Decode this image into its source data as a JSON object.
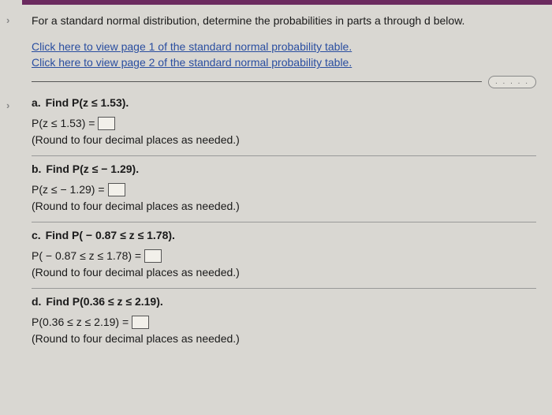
{
  "colors": {
    "accent_bar": "#6b2a5f",
    "background": "#d9d7d2",
    "link": "#2a4ea0",
    "text": "#1a1a1a",
    "border": "#555555"
  },
  "intro": "For a standard normal distribution, determine the probabilities in parts a through d below.",
  "links": {
    "page1": "Click here to view page 1 of the standard normal probability table.",
    "page2": "Click here to view page 2 of the standard normal probability table."
  },
  "expand_dots": ". . . . .",
  "parts": {
    "a": {
      "label": "a.",
      "title": "Find P(z ≤ 1.53).",
      "eq": "P(z ≤ 1.53) =",
      "hint": "(Round to four decimal places as needed.)"
    },
    "b": {
      "label": "b.",
      "title": "Find P(z ≤ − 1.29).",
      "eq": "P(z ≤ − 1.29) =",
      "hint": "(Round to four decimal places as needed.)"
    },
    "c": {
      "label": "c.",
      "title": "Find P( − 0.87 ≤ z ≤ 1.78).",
      "eq": "P( − 0.87 ≤ z ≤ 1.78) =",
      "hint": "(Round to four decimal places as needed.)"
    },
    "d": {
      "label": "d.",
      "title": "Find P(0.36 ≤ z ≤ 2.19).",
      "eq": "P(0.36 ≤ z ≤ 2.19) =",
      "hint": "(Round to four decimal places as needed.)"
    }
  }
}
